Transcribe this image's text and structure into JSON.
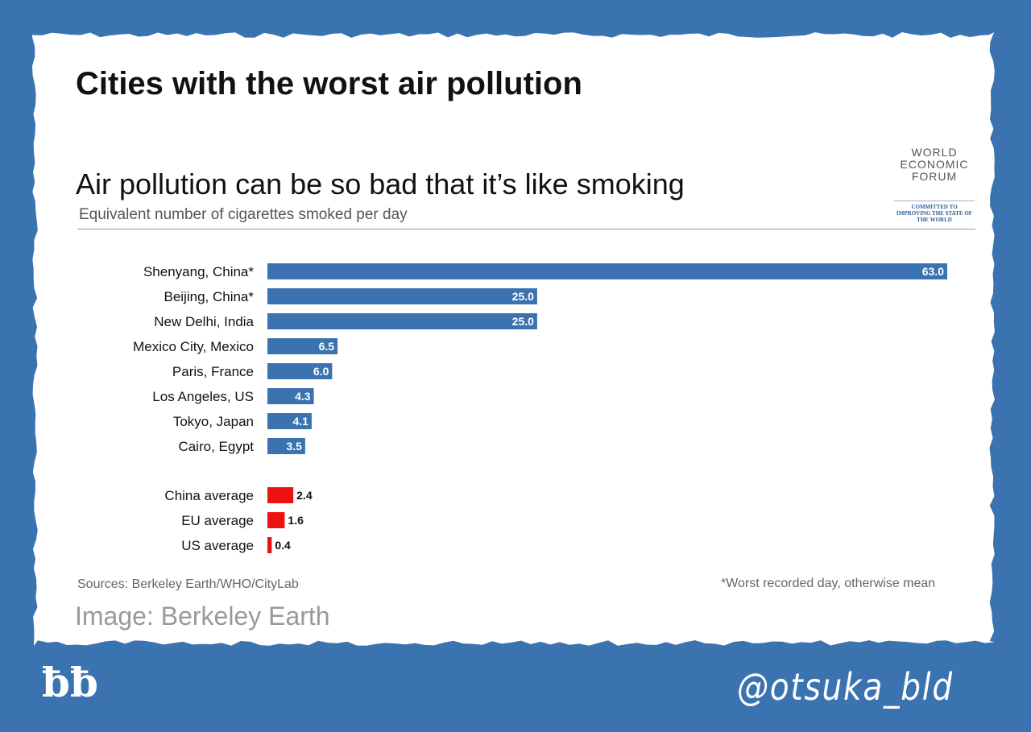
{
  "title": "Cities with the worst air pollution",
  "logo": {
    "line1": "WORLD",
    "line2": "ECONOMIC",
    "line3": "FORUM",
    "tagline": "COMMITTED TO IMPROVING THE STATE OF THE WORLD"
  },
  "chart_data": {
    "type": "bar",
    "orientation": "horizontal",
    "title": "Air pollution can be so bad that it’s like smoking",
    "subtitle": "Equivalent number of cigarettes smoked per day",
    "categories": [
      "Shenyang, China*",
      "Beijing, China*",
      "New Delhi, India",
      "Mexico City, Mexico",
      "Paris, France",
      "Los Angeles, US",
      "Tokyo, Japan",
      "Cairo, Egypt",
      "China average",
      "EU average",
      "US average"
    ],
    "values": [
      63.0,
      25.0,
      25.0,
      6.5,
      6.0,
      4.3,
      4.1,
      3.5,
      2.4,
      1.6,
      0.4
    ],
    "groups": [
      "city",
      "city",
      "city",
      "city",
      "city",
      "city",
      "city",
      "city",
      "average",
      "average",
      "average"
    ],
    "colors": {
      "city": "#3b73b0",
      "average": "#ee1111"
    },
    "xlim": [
      0,
      63
    ]
  },
  "sources": "Sources: Berkeley Earth/WHO/CityLab",
  "note": "*Worst recorded day, otherwise mean",
  "credit": "Image: Berkeley Earth",
  "mark": "ƀƀ",
  "handle": "@otsuka_bld"
}
